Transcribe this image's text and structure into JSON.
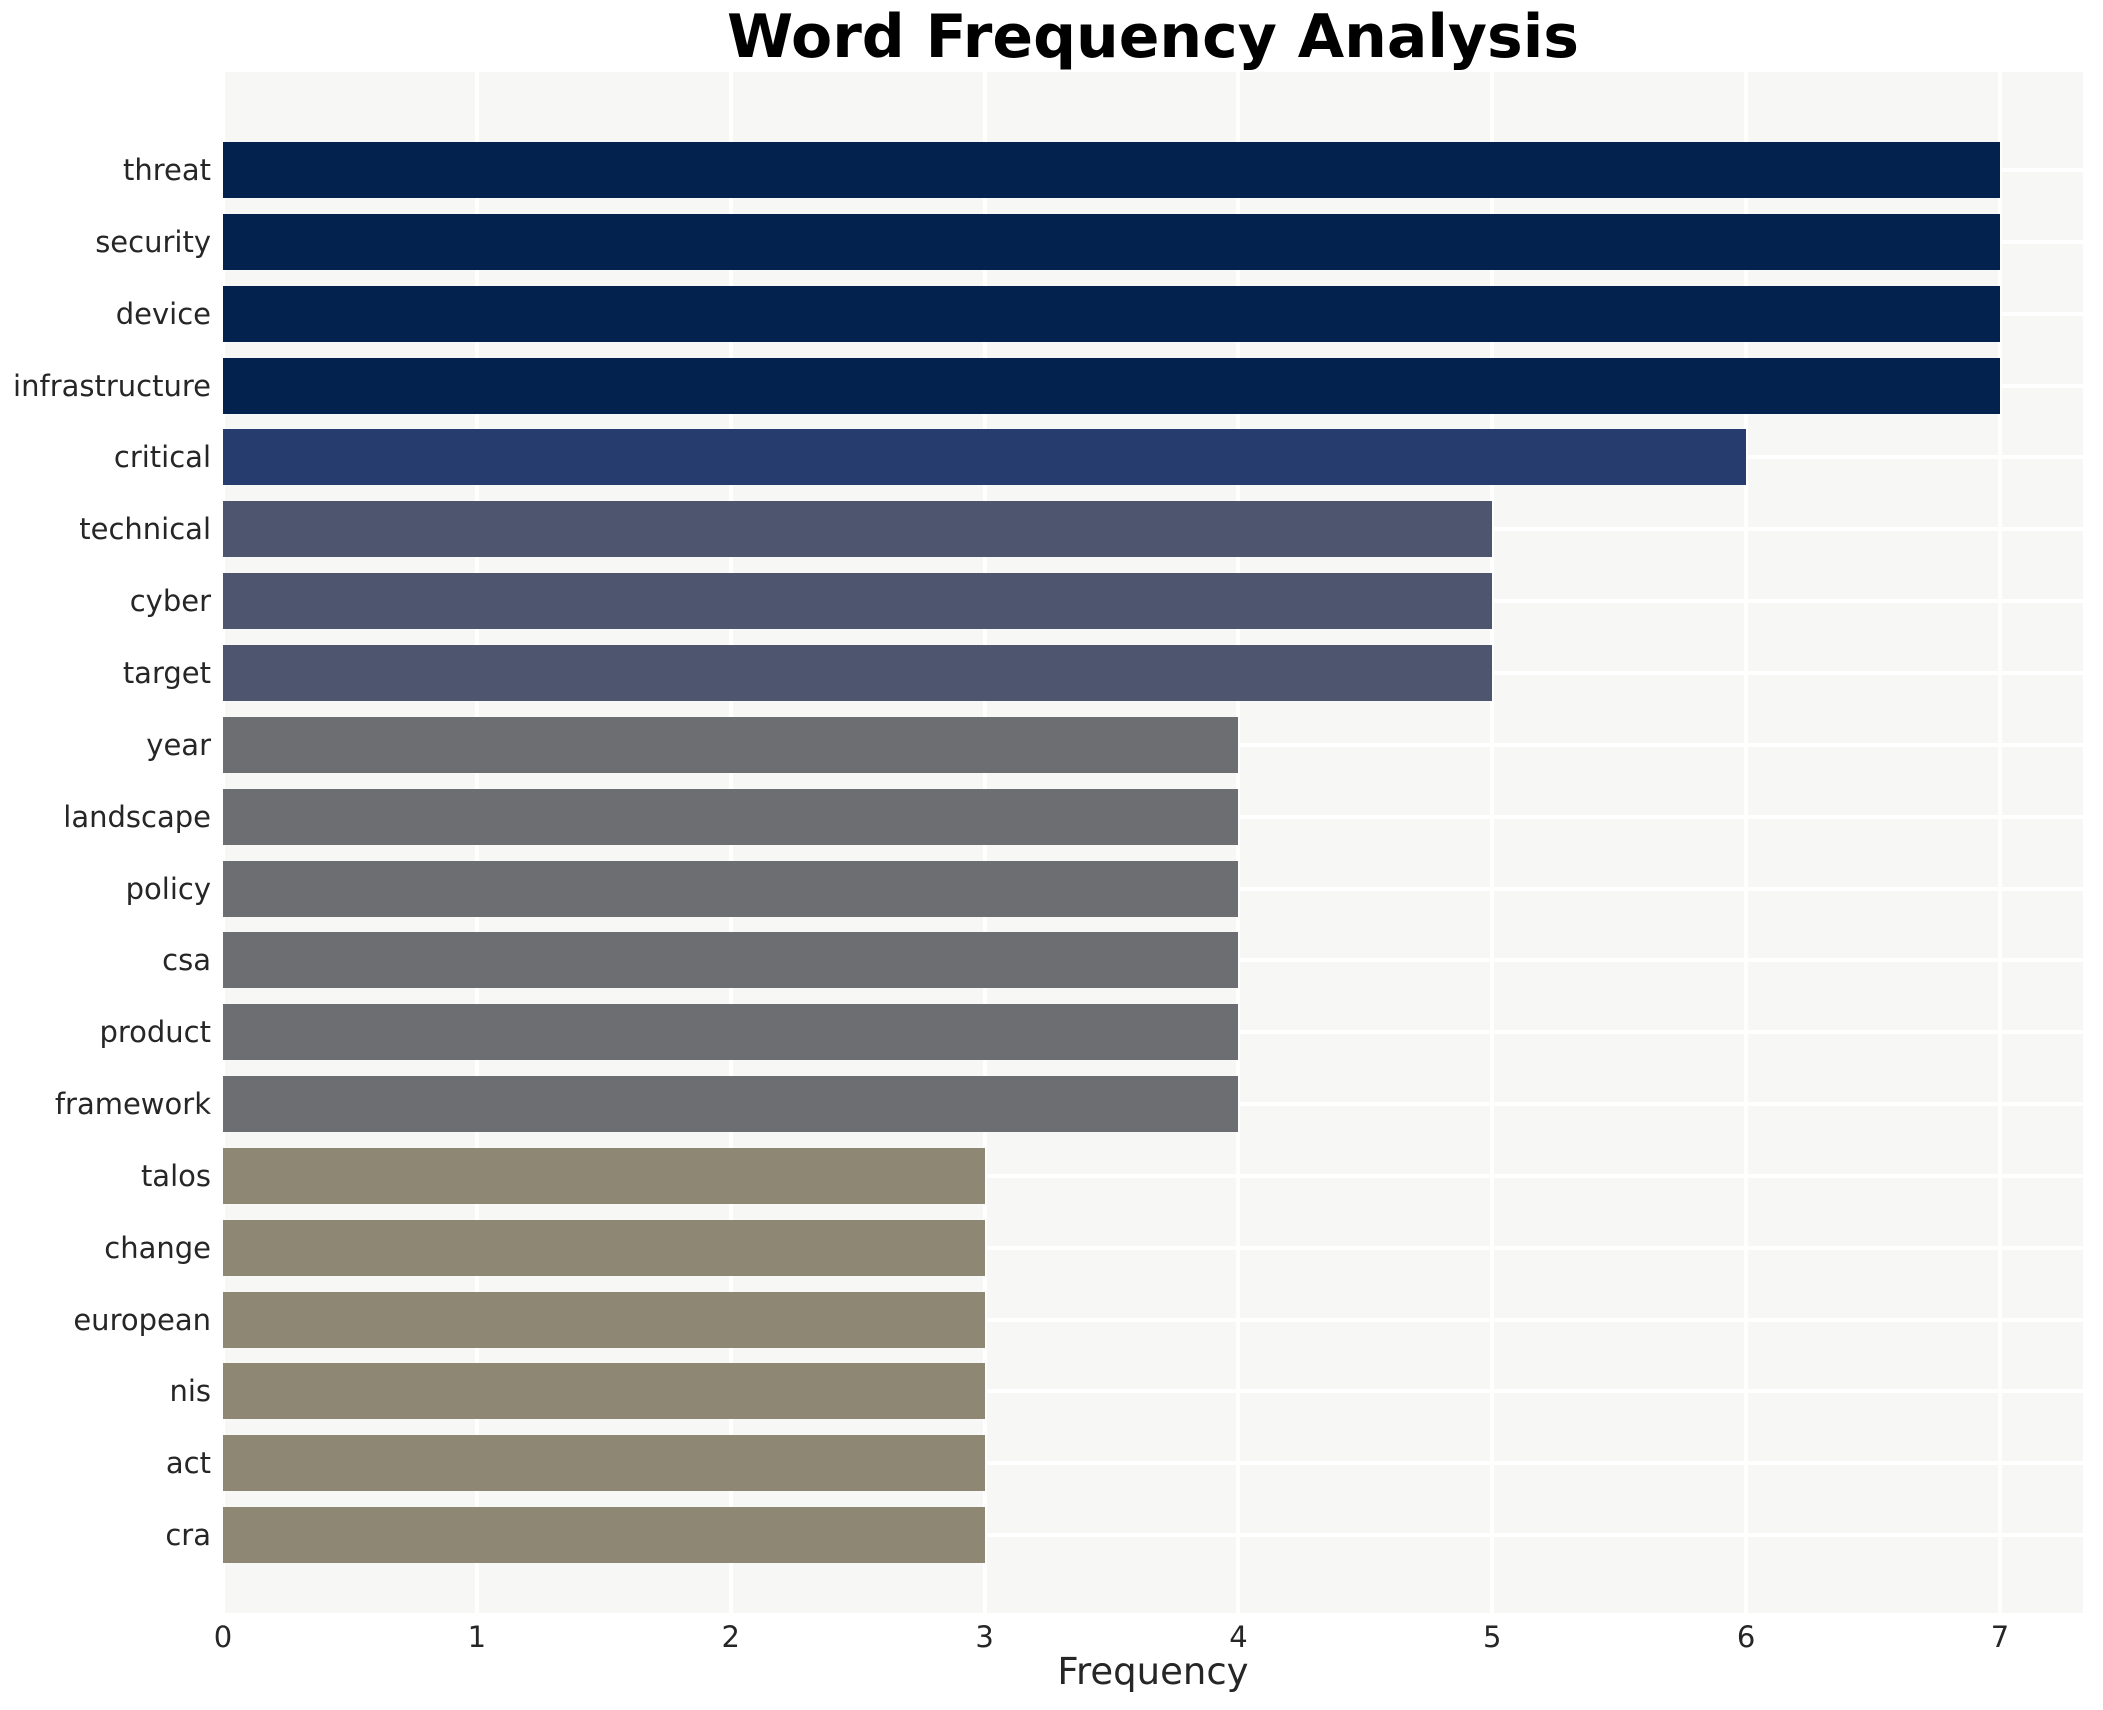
{
  "title": "Word Frequency Analysis",
  "chart_data": {
    "type": "bar",
    "orientation": "horizontal",
    "title": "Word Frequency Analysis",
    "xlabel": "Frequency",
    "ylabel": "",
    "categories": [
      "threat",
      "security",
      "device",
      "infrastructure",
      "critical",
      "technical",
      "cyber",
      "target",
      "year",
      "landscape",
      "policy",
      "csa",
      "product",
      "framework",
      "talos",
      "change",
      "european",
      "nis",
      "act",
      "cra"
    ],
    "values": [
      7,
      7,
      7,
      7,
      6,
      5,
      5,
      5,
      4,
      4,
      4,
      4,
      4,
      4,
      3,
      3,
      3,
      3,
      3,
      3
    ],
    "xticks": [
      0,
      1,
      2,
      3,
      4,
      5,
      6,
      7
    ],
    "xlim": [
      0,
      7.33
    ],
    "grid": true,
    "legend_position": "none",
    "colors_by_value": {
      "7": "#03234e",
      "6": "#263c6f",
      "5": "#4d566e",
      "4": "#6c6e72",
      "3": "#8d8773"
    },
    "plot_background": "#f7f7f6",
    "grid_color": "#ffffff",
    "figure_background": "#ffffff",
    "text_color": "#262626",
    "title_color": "#000000"
  }
}
